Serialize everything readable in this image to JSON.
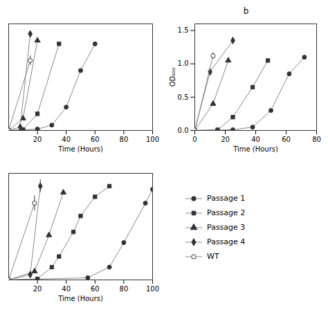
{
  "chart_data": [
    {
      "type": "line",
      "title": "",
      "xlabel": "Time (Hours)",
      "ylabel": "",
      "xlim": [
        0,
        100
      ],
      "ylim": [
        0,
        1.6
      ],
      "xticks": [
        20,
        40,
        60,
        80,
        100
      ],
      "yticks": [],
      "tick_labels": "x",
      "color": "#888888",
      "series": [
        {
          "name": "Passage 1",
          "marker": "circle",
          "color": "#333333",
          "x": [
            0,
            10,
            20,
            30,
            40,
            50,
            60
          ],
          "values": [
            0,
            0.01,
            0.02,
            0.08,
            0.35,
            0.9,
            1.3
          ]
        },
        {
          "name": "Passage 2",
          "marker": "square",
          "color": "#333333",
          "x": [
            0,
            10,
            20,
            35
          ],
          "values": [
            0,
            0.01,
            0.25,
            1.3
          ]
        },
        {
          "name": "Passage 3",
          "marker": "triangle",
          "color": "#333333",
          "x": [
            0,
            10,
            20
          ],
          "values": [
            0,
            0.18,
            1.35
          ]
        },
        {
          "name": "Passage 4",
          "marker": "diamond",
          "color": "#333333",
          "x": [
            0,
            8,
            15
          ],
          "values": [
            0,
            0.05,
            1.45
          ]
        },
        {
          "name": "WT",
          "marker": "open circle",
          "color": "#333333",
          "x": [
            0,
            15
          ],
          "values": [
            0,
            1.05
          ],
          "yerr": [
            0,
            0.07
          ]
        }
      ]
    },
    {
      "type": "line",
      "title": "b",
      "xlabel": "Time (Hours)",
      "ylabel": "OD₆₀₀",
      "xlim": [
        0,
        80
      ],
      "ylim": [
        0,
        1.6
      ],
      "xticks": [
        0,
        20,
        40,
        60,
        80
      ],
      "yticks": [
        {
          "value": 0.0,
          "label": "0.0"
        },
        0.5,
        {
          "value": 1.0,
          "label": "1.0"
        },
        1.5
      ],
      "color": "#888888",
      "series": [
        {
          "name": "Passage 1",
          "marker": "circle",
          "color": "#333333",
          "x": [
            0,
            25,
            38,
            50,
            62,
            72
          ],
          "values": [
            0,
            0.01,
            0.05,
            0.3,
            0.85,
            1.1
          ]
        },
        {
          "name": "Passage 2",
          "marker": "square",
          "color": "#333333",
          "x": [
            0,
            15,
            25,
            38,
            48
          ],
          "values": [
            0,
            0.01,
            0.2,
            0.65,
            1.05
          ]
        },
        {
          "name": "Passage 3",
          "marker": "triangle",
          "color": "#333333",
          "x": [
            0,
            12,
            22
          ],
          "values": [
            0,
            0.4,
            1.05
          ]
        },
        {
          "name": "Passage 4",
          "marker": "diamond",
          "color": "#333333",
          "x": [
            0,
            10,
            25
          ],
          "values": [
            0,
            0.88,
            1.35
          ]
        },
        {
          "name": "WT",
          "marker": "open circle",
          "color": "#333333",
          "x": [
            0,
            12
          ],
          "values": [
            0,
            1.12
          ],
          "yerr": [
            0,
            0.05
          ]
        }
      ]
    },
    {
      "type": "line",
      "title": "",
      "xlabel": "Time (Hours)",
      "ylabel": "",
      "xlim": [
        0,
        100
      ],
      "ylim": [
        0,
        1.0
      ],
      "xticks": [
        20,
        40,
        60,
        80,
        100
      ],
      "yticks": [],
      "tick_labels": "x",
      "color": "#888888",
      "legend": "right",
      "series": [
        {
          "name": "Passage 1",
          "marker": "circle",
          "color": "#333333",
          "x": [
            0,
            55,
            70,
            80,
            95,
            100
          ],
          "values": [
            0,
            0.02,
            0.12,
            0.35,
            0.72,
            0.85
          ]
        },
        {
          "name": "Passage 2",
          "marker": "square",
          "color": "#333333",
          "x": [
            0,
            20,
            30,
            35,
            45,
            50,
            60,
            70
          ],
          "values": [
            0,
            0.01,
            0.12,
            0.22,
            0.45,
            0.6,
            0.78,
            0.88
          ]
        },
        {
          "name": "Passage 3",
          "marker": "triangle",
          "color": "#333333",
          "x": [
            0,
            18,
            28,
            38
          ],
          "values": [
            0,
            0.08,
            0.42,
            0.82
          ]
        },
        {
          "name": "Passage 4",
          "marker": "diamond",
          "color": "#333333",
          "x": [
            0,
            15,
            22
          ],
          "values": [
            0,
            0.05,
            0.88
          ],
          "yerr": [
            0,
            0.0,
            0.06
          ]
        },
        {
          "name": "WT",
          "marker": "open circle",
          "color": "#333333",
          "x": [
            0,
            18
          ],
          "values": [
            0,
            0.72
          ],
          "yerr": [
            0,
            0.07
          ]
        }
      ]
    }
  ]
}
